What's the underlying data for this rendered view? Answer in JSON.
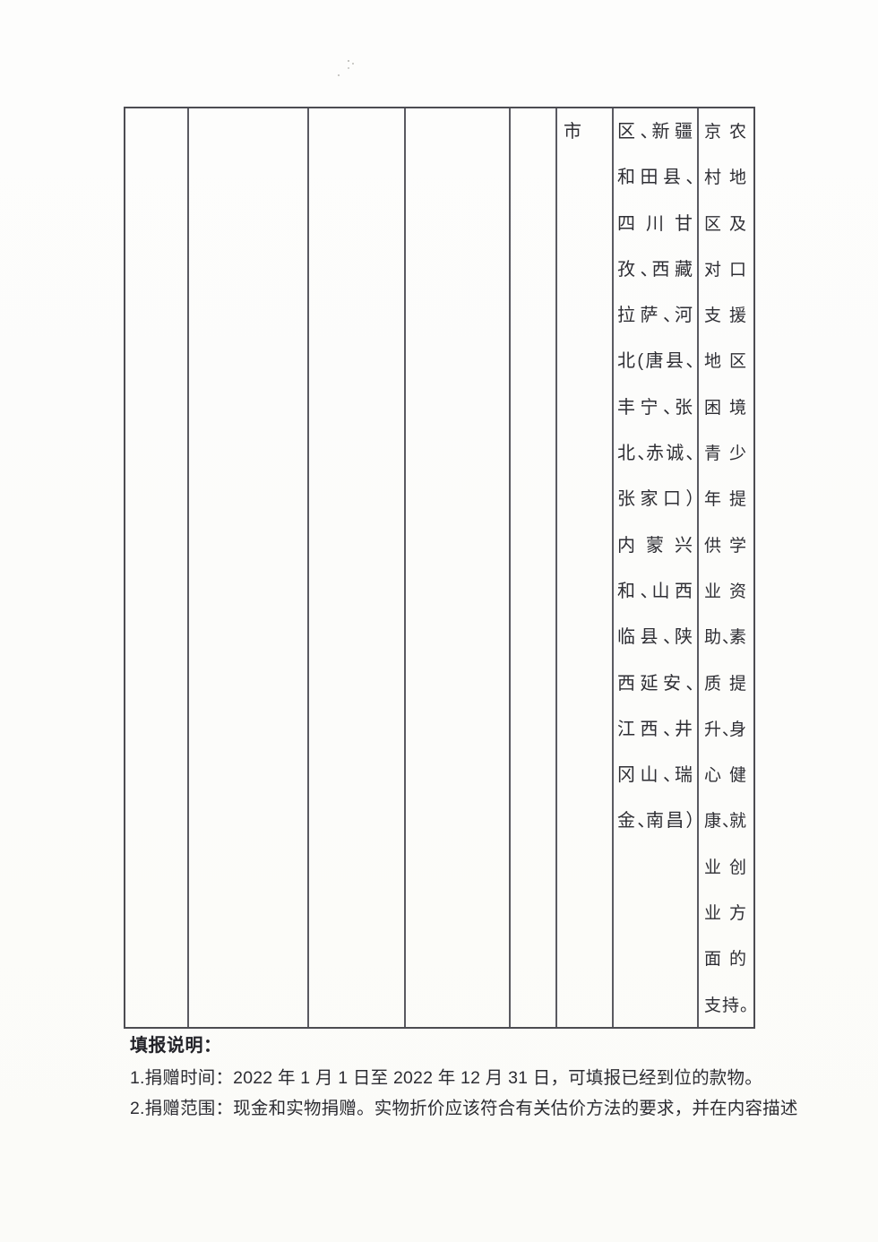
{
  "page": {
    "table": {
      "column6": {
        "text": "市"
      },
      "column7": {
        "lines": [
          "区、新疆",
          "和田县、",
          "四川甘",
          "孜、西藏",
          "拉萨、河",
          "北(唐县、",
          "丰宁、张",
          "北、赤诚、",
          "张家口）",
          "内蒙兴",
          "和、山西",
          "临县、陕",
          "西延安、",
          "江西、井",
          "冈山、瑞",
          "金、南昌）"
        ]
      },
      "column8": {
        "lines": [
          "京农",
          "村地",
          "区及",
          "对口",
          "支援",
          "地区",
          "困境",
          "青少",
          "年提",
          "供学",
          "业资",
          "助、素",
          "质提",
          "升、身",
          "心健",
          "康、就",
          "业创",
          "业方",
          "面的",
          "支持。"
        ]
      }
    },
    "notes": {
      "heading": "填报说明：",
      "items": [
        "1.捐赠时间：2022 年 1 月 1 日至 2022 年 12 月 31 日，可填报已经到位的款物。",
        "2.捐赠范围：现金和实物捐赠。实物折价应该符合有关估价方法的要求，并在内容描述"
      ]
    }
  }
}
